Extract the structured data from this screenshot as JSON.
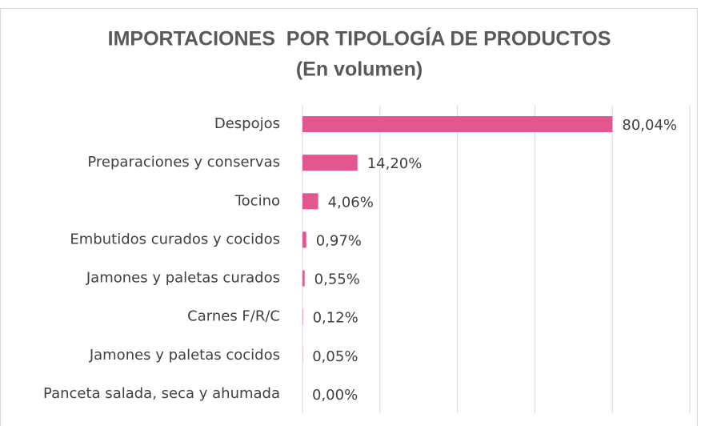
{
  "chart_data": {
    "type": "hbar",
    "title": "IMPORTACIONES  POR TIPOLOGÍA DE PRODUCTOS",
    "subtitle": "(En volumen)",
    "categories": [
      "Despojos",
      "Preparaciones y conservas",
      "Tocino",
      "Embutidos curados y cocidos",
      "Jamones y paletas curados",
      "Carnes F/R/C",
      "Jamones y paletas cocidos",
      "Panceta salada, seca y ahumada"
    ],
    "values": [
      80.04,
      14.2,
      4.06,
      0.97,
      0.55,
      0.12,
      0.05,
      0.0
    ],
    "value_labels": [
      "80,04%",
      "14,20%",
      "4,06%",
      "0,97%",
      "0,55%",
      "0,12%",
      "0,05%",
      "0,00%"
    ],
    "color": "#e4568e",
    "xlim": [
      0,
      100
    ],
    "xticks": [
      0,
      20,
      40,
      60,
      80,
      100
    ],
    "xtick_labels": false,
    "grid": true
  }
}
